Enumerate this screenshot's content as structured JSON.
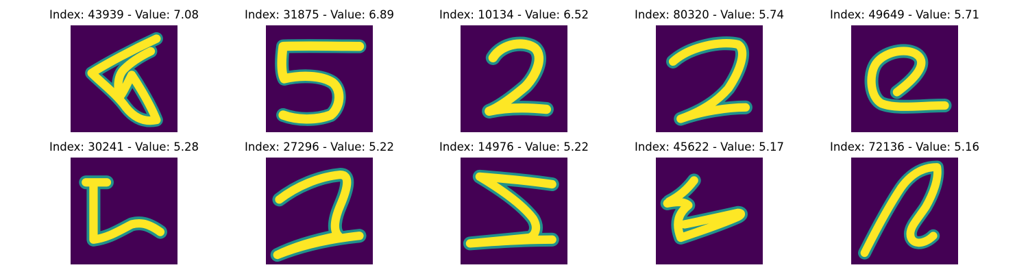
{
  "figure": {
    "background": "#ffffff",
    "colormap": "viridis",
    "image_bg": "#440154",
    "stroke_colors": [
      "#3b528b",
      "#21918c",
      "#5ec962",
      "#fde725"
    ]
  },
  "panels": [
    {
      "title": "Index: 43939 - Value: 7.08",
      "digit_icon": "handwritten-digit-4-icon"
    },
    {
      "title": "Index: 31875 - Value: 6.89",
      "digit_icon": "handwritten-digit-5-icon"
    },
    {
      "title": "Index: 10134 - Value: 6.52",
      "digit_icon": "handwritten-digit-2-icon"
    },
    {
      "title": "Index: 80320 - Value: 5.74",
      "digit_icon": "handwritten-digit-2-icon"
    },
    {
      "title": "Index: 49649 - Value: 5.71",
      "digit_icon": "handwritten-digit-2-icon"
    },
    {
      "title": "Index: 30241 - Value: 5.28",
      "digit_icon": "handwritten-digit-L-icon"
    },
    {
      "title": "Index: 27296 - Value: 5.22",
      "digit_icon": "handwritten-digit-2-icon"
    },
    {
      "title": "Index: 14976 - Value: 5.22",
      "digit_icon": "handwritten-digit-5-icon"
    },
    {
      "title": "Index: 45622 - Value: 5.17",
      "digit_icon": "handwritten-digit-1-icon"
    },
    {
      "title": "Index: 72136 - Value: 5.16",
      "digit_icon": "handwritten-digit-2-icon"
    }
  ]
}
